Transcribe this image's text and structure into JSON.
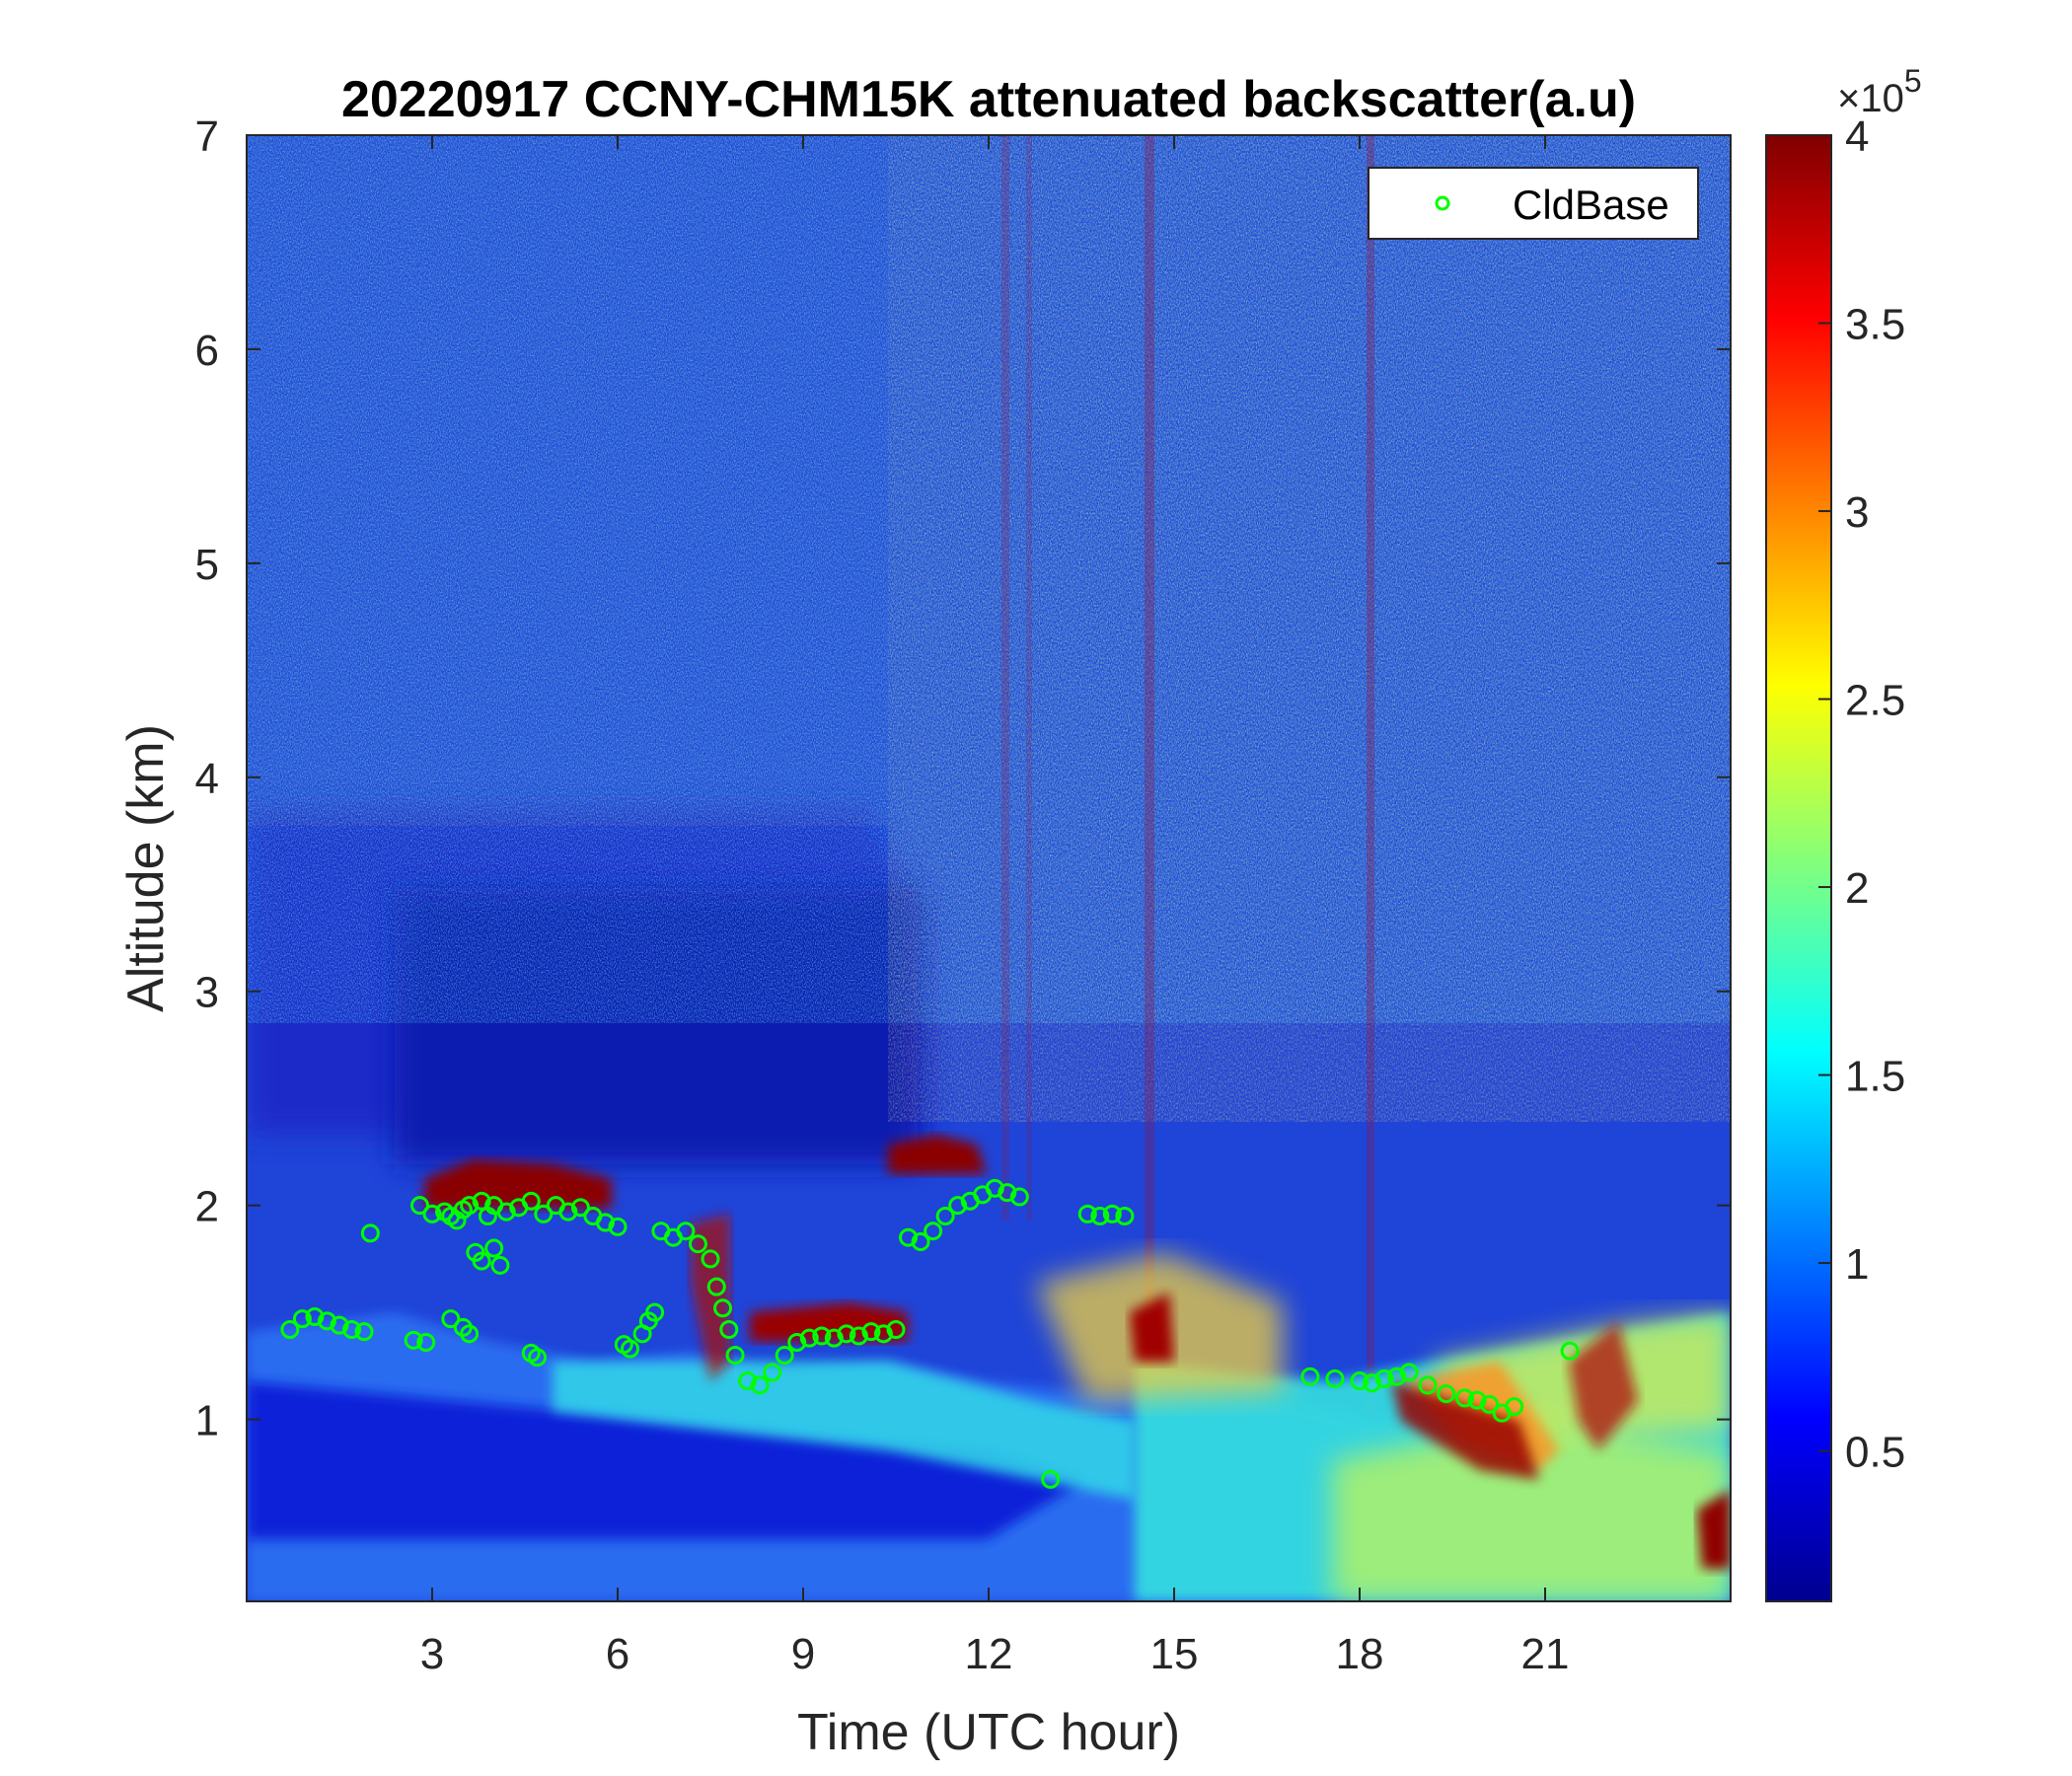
{
  "chart_data": {
    "type": "heatmap",
    "title": "20220917 CCNY-CHM15K attenuated backscatter(a.u)",
    "xlabel": "Time (UTC hour)",
    "ylabel": "Altitude (km)",
    "xlim": [
      0,
      24
    ],
    "ylim": [
      0.15,
      7
    ],
    "xticks": [
      3,
      6,
      9,
      12,
      15,
      18,
      21
    ],
    "yticks": [
      1,
      2,
      3,
      4,
      5,
      6,
      7
    ],
    "colorbar": {
      "colormap": "jet",
      "clim": [
        0.1,
        4
      ],
      "ticks": [
        0.5,
        1,
        1.5,
        2,
        2.5,
        3,
        3.5,
        4
      ],
      "exponent_base": "×10",
      "exponent_power": "5"
    },
    "legend": {
      "location": "top-right",
      "entries": [
        {
          "name": "CldBase",
          "marker": "circle",
          "color": "#00ff00"
        }
      ]
    },
    "series": [
      {
        "name": "CldBase",
        "marker": "circle",
        "color": "#00ff00",
        "x": [
          0.7,
          0.9,
          1.1,
          1.3,
          1.5,
          1.7,
          1.9,
          2.0,
          2.8,
          3.0,
          3.2,
          3.3,
          3.4,
          3.5,
          3.6,
          3.8,
          3.9,
          4.0,
          4.2,
          4.4,
          4.6,
          4.8,
          5.0,
          5.2,
          5.4,
          5.6,
          5.8,
          6.0,
          3.7,
          3.8,
          4.0,
          4.1,
          3.3,
          3.5,
          3.6,
          2.7,
          2.9,
          4.6,
          4.7,
          6.1,
          6.2,
          6.4,
          6.5,
          6.6,
          6.7,
          6.9,
          7.1,
          7.3,
          7.5,
          7.6,
          7.7,
          7.8,
          7.9,
          8.1,
          8.3,
          8.5,
          8.7,
          8.9,
          9.1,
          9.3,
          9.5,
          9.7,
          9.9,
          10.1,
          10.3,
          10.5,
          10.7,
          10.9,
          11.1,
          11.3,
          11.5,
          11.7,
          11.9,
          12.1,
          12.3,
          12.5,
          13.0,
          13.6,
          13.8,
          14.0,
          14.2,
          17.2,
          17.6,
          18.0,
          18.2,
          18.4,
          18.6,
          18.8,
          19.1,
          19.4,
          19.7,
          19.9,
          20.1,
          20.3,
          20.5,
          21.4
        ],
        "y": [
          1.42,
          1.47,
          1.48,
          1.46,
          1.44,
          1.42,
          1.41,
          1.87,
          2.0,
          1.96,
          1.97,
          1.95,
          1.93,
          1.98,
          2.0,
          2.02,
          1.95,
          2.0,
          1.97,
          1.99,
          2.02,
          1.96,
          2.0,
          1.97,
          1.99,
          1.95,
          1.92,
          1.9,
          1.78,
          1.74,
          1.8,
          1.72,
          1.47,
          1.43,
          1.4,
          1.37,
          1.36,
          1.31,
          1.29,
          1.35,
          1.33,
          1.4,
          1.46,
          1.5,
          1.88,
          1.85,
          1.88,
          1.82,
          1.75,
          1.62,
          1.52,
          1.42,
          1.3,
          1.18,
          1.16,
          1.22,
          1.3,
          1.36,
          1.38,
          1.39,
          1.38,
          1.4,
          1.39,
          1.41,
          1.4,
          1.42,
          1.85,
          1.83,
          1.88,
          1.95,
          2.0,
          2.02,
          2.05,
          2.08,
          2.06,
          2.04,
          0.72,
          1.96,
          1.95,
          1.96,
          1.95,
          1.2,
          1.19,
          1.18,
          1.17,
          1.19,
          1.2,
          1.22,
          1.16,
          1.12,
          1.1,
          1.09,
          1.07,
          1.03,
          1.06,
          1.32
        ]
      }
    ]
  }
}
